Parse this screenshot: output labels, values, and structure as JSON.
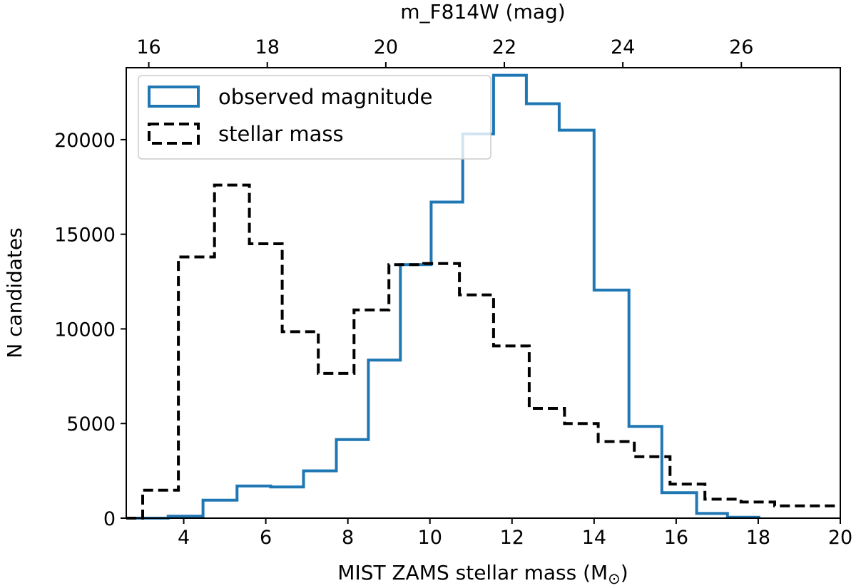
{
  "chart_data": {
    "type": "step-histogram",
    "xlabel": "MIST ZAMS stellar mass (M",
    "xlabel_sub": "⊙",
    "xlabel_close": ")",
    "x2label": "m_F814W (mag)",
    "ylabel": "N candidates",
    "xlim": [
      2.6,
      20
    ],
    "ylim": [
      0,
      23800
    ],
    "x2lim": [
      15.62,
      27.67
    ],
    "xticks": [
      4,
      6,
      8,
      10,
      12,
      14,
      16,
      18,
      20
    ],
    "x2ticks": [
      16,
      18,
      20,
      22,
      24,
      26
    ],
    "yticks": [
      0,
      5000,
      10000,
      15000,
      20000
    ],
    "grid": false,
    "legend_position": "upper-left",
    "series": [
      {
        "name": "observed magnitude",
        "color": "#1f77b4",
        "style": "solid",
        "edges": [
          2.6,
          3.62,
          4.47,
          5.3,
          6.12,
          6.92,
          7.72,
          8.5,
          9.28,
          10.03,
          10.8,
          11.55,
          12.35,
          13.15,
          14.0,
          14.85,
          15.65,
          16.5,
          17.25,
          18.05
        ],
        "counts": [
          0,
          100,
          950,
          1700,
          1650,
          2500,
          4150,
          8350,
          13400,
          16700,
          20300,
          23400,
          21900,
          20500,
          12050,
          4850,
          1350,
          250,
          50
        ]
      },
      {
        "name": "stellar mass",
        "color": "#000000",
        "style": "dashed",
        "edges": [
          2.6,
          3.0,
          3.87,
          4.75,
          5.6,
          6.4,
          7.28,
          8.15,
          9.0,
          9.85,
          10.72,
          11.55,
          12.42,
          13.28,
          14.1,
          14.98,
          15.85,
          16.7,
          17.58,
          18.4,
          20.0
        ],
        "counts": [
          0,
          1480,
          13800,
          17600,
          14500,
          9850,
          7650,
          11000,
          13400,
          13450,
          11800,
          9100,
          5800,
          5000,
          4050,
          3250,
          1800,
          1000,
          850,
          650
        ]
      }
    ]
  }
}
